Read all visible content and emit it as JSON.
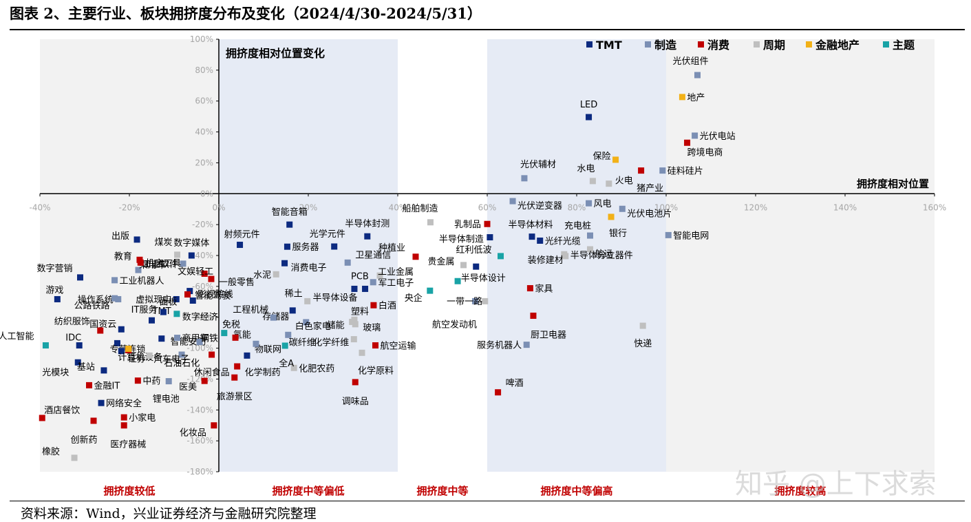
{
  "figure": {
    "title": "图表 2、主要行业、板块拥挤度分布及变化（2024/4/30-2024/5/31）",
    "source": "资料来源：Wind，兴业证券经济与金融研究院整理",
    "watermark": "知乎 @上下求索"
  },
  "chart_data": {
    "type": "scatter",
    "title": "拥挤度相对位置变化",
    "xlabel": "拥挤度相对位置",
    "ylabel": "拥挤度相对位置变化",
    "xlim": [
      -0.4,
      1.6
    ],
    "ylim": [
      -1.8,
      1.0
    ],
    "x_ticks": [
      "-40%",
      "-20%",
      "0%",
      "20%",
      "40%",
      "60%",
      "80%",
      "100%",
      "120%",
      "140%",
      "160%"
    ],
    "y_ticks": [
      "100%",
      "80%",
      "60%",
      "40%",
      "20%",
      "0%",
      "-20%",
      "-40%",
      "-60%",
      "-80%",
      "-100%",
      "-120%",
      "-140%",
      "-160%",
      "-180%"
    ],
    "legend_position": "top-right",
    "colors": {
      "TMT": "#0c2a80",
      "制造": "#7b8fb4",
      "消费": "#c00000",
      "周期": "#bfbfbf",
      "金融地产": "#f2b117",
      "主题": "#19a3a6"
    },
    "bands": [
      {
        "label": "拥挤度较低",
        "range": [
          -0.4,
          0.0
        ],
        "color": "#f2f2f2"
      },
      {
        "label": "拥挤度中等偏低",
        "range": [
          0.0,
          0.4
        ],
        "color": "#e6ebf5"
      },
      {
        "label": "拥挤度中等",
        "range": [
          0.4,
          0.6
        ],
        "color": "#ffffff"
      },
      {
        "label": "拥挤度中等偏高",
        "range": [
          0.6,
          1.0
        ],
        "color": "#e6ebf5"
      },
      {
        "label": "拥挤度较高",
        "range": [
          1.0,
          1.6
        ],
        "color": "#f2f2f2"
      }
    ],
    "series": [
      {
        "name": "TMT",
        "points": [
          {
            "label": "LED",
            "x": 0.827,
            "y": 0.496
          },
          {
            "label": "半导体材料",
            "x": 0.7,
            "y": -0.278
          },
          {
            "label": "光纤光缆",
            "x": 0.718,
            "y": -0.304
          },
          {
            "label": "半导体制造",
            "x": 0.606,
            "y": -0.282
          },
          {
            "label": "半导体设计",
            "x": 0.575,
            "y": -0.472
          },
          {
            "label": "半导体封测",
            "x": 0.332,
            "y": -0.276
          },
          {
            "label": "光学元件",
            "x": 0.258,
            "y": -0.342
          },
          {
            "label": "PCB",
            "x": 0.303,
            "y": -0.616
          },
          {
            "label": "半导体设备",
            "x": 0.327,
            "y": -0.616
          },
          {
            "label": "智能音箱",
            "x": 0.158,
            "y": -0.2
          },
          {
            "label": "射频元件",
            "x": 0.047,
            "y": -0.331
          },
          {
            "label": "服务器",
            "x": 0.153,
            "y": -0.343
          },
          {
            "label": "消费电子",
            "x": 0.147,
            "y": -0.45
          },
          {
            "label": "存储器",
            "x": 0.165,
            "y": -0.756
          },
          {
            "label": "物联网",
            "x": 0.063,
            "y": -1.048
          },
          {
            "label": "数字媒体",
            "x": -0.061,
            "y": -0.4
          },
          {
            "label": "影视院线",
            "x": -0.065,
            "y": -0.63
          },
          {
            "label": "智能驾驶",
            "x": -0.058,
            "y": -0.692
          },
          {
            "label": "虚拟现实",
            "x": -0.095,
            "y": -0.683
          },
          {
            "label": "TMT",
            "x": -0.15,
            "y": -0.82
          },
          {
            "label": "IT服务",
            "x": -0.124,
            "y": -0.766
          },
          {
            "label": "国资云",
            "x": -0.218,
            "y": -0.878
          },
          {
            "label": "智能安防",
            "x": -0.128,
            "y": -0.938
          },
          {
            "label": "游戏",
            "x": -0.361,
            "y": -0.683
          },
          {
            "label": "数字营销",
            "x": -0.31,
            "y": -0.542
          },
          {
            "label": "出版",
            "x": -0.183,
            "y": -0.297
          },
          {
            "label": "IDC",
            "x": -0.312,
            "y": -0.982
          },
          {
            "label": "专营连锁",
            "x": -0.227,
            "y": -0.968
          },
          {
            "label": "计算机设备",
            "x": -0.218,
            "y": -1.019
          },
          {
            "label": "光模块",
            "x": -0.315,
            "y": -1.092
          },
          {
            "label": "基站",
            "x": -0.257,
            "y": -1.144
          },
          {
            "label": "网络安全",
            "x": -0.263,
            "y": -1.355
          }
        ]
      },
      {
        "name": "制造",
        "points": [
          {
            "label": "光伏组件",
            "x": 1.07,
            "y": 0.768
          },
          {
            "label": "光伏电站",
            "x": 1.064,
            "y": 0.376
          },
          {
            "label": "硅料硅片",
            "x": 0.992,
            "y": 0.15
          },
          {
            "label": "光伏辅材",
            "x": 0.683,
            "y": 0.1
          },
          {
            "label": "光伏逆变器",
            "x": 0.657,
            "y": -0.048
          },
          {
            "label": "风电",
            "x": 0.827,
            "y": -0.062
          },
          {
            "label": "光伏电池片",
            "x": 0.902,
            "y": -0.098
          },
          {
            "label": "充电桩",
            "x": 0.83,
            "y": -0.271
          },
          {
            "label": "智能电网",
            "x": 1.005,
            "y": -0.268
          },
          {
            "label": "航空发动机",
            "x": 0.573,
            "y": -0.696
          },
          {
            "label": "服务机器人",
            "x": 0.688,
            "y": -0.978
          },
          {
            "label": "卫星通信",
            "x": 0.288,
            "y": -0.446
          },
          {
            "label": "军工电子",
            "x": 0.345,
            "y": -0.573
          },
          {
            "label": "工程机械",
            "x": 0.122,
            "y": -0.802
          },
          {
            "label": "白色家电",
            "x": 0.195,
            "y": -0.832
          },
          {
            "label": "氢能",
            "x": 0.083,
            "y": -0.972
          },
          {
            "label": "碳纤维",
            "x": 0.155,
            "y": -0.914
          },
          {
            "label": "工业机器人",
            "x": -0.233,
            "y": -0.56
          },
          {
            "label": "操作系统",
            "x": -0.225,
            "y": -0.683
          },
          {
            "label": "乘用车",
            "x": -0.18,
            "y": -0.494
          },
          {
            "label": "工业软件",
            "x": -0.08,
            "y": -0.453
          },
          {
            "label": "锂电池",
            "x": -0.112,
            "y": -1.214
          },
          {
            "label": "公路铁路",
            "x": -0.233,
            "y": -0.677
          },
          {
            "label": "商用车",
            "x": -0.093,
            "y": -0.933
          },
          {
            "label": "汽车电子",
            "x": -0.083,
            "y": -1.042
          },
          {
            "label": "钢铁",
            "x": -0.043,
            "y": -0.96
          }
        ]
      },
      {
        "name": "消费",
        "points": [
          {
            "label": "跨境电商",
            "x": 1.047,
            "y": 0.33
          },
          {
            "label": "猪产业",
            "x": 0.944,
            "y": 0.15
          },
          {
            "label": "乳制品",
            "x": 0.6,
            "y": -0.196
          },
          {
            "label": "种植业",
            "x": 0.44,
            "y": -0.408
          },
          {
            "label": "家具",
            "x": 0.696,
            "y": -0.612
          },
          {
            "label": "厨卫电器",
            "x": 0.703,
            "y": -0.79
          },
          {
            "label": "啤酒",
            "x": 0.624,
            "y": -1.286
          },
          {
            "label": "白酒",
            "x": 0.346,
            "y": -0.722
          },
          {
            "label": "航空运输",
            "x": 0.35,
            "y": -0.982
          },
          {
            "label": "调味品",
            "x": 0.305,
            "y": -1.22
          },
          {
            "label": "免税",
            "x": 0.037,
            "y": -0.932
          },
          {
            "label": "化学制药",
            "x": 0.041,
            "y": -1.118
          },
          {
            "label": "旅游景区",
            "x": 0.035,
            "y": -1.19
          },
          {
            "label": "教育",
            "x": -0.177,
            "y": -0.428
          },
          {
            "label": "机床工具",
            "x": -0.175,
            "y": -0.446
          },
          {
            "label": "文娱轻工",
            "x": -0.032,
            "y": -0.518
          },
          {
            "label": "一般零售",
            "x": -0.017,
            "y": -0.552
          },
          {
            "label": "面板",
            "x": -0.07,
            "y": -0.652
          },
          {
            "label": "纺织服饰",
            "x": -0.265,
            "y": -0.886
          },
          {
            "label": "证券",
            "x": -0.202,
            "y": -1.013
          },
          {
            "label": "中药",
            "x": -0.181,
            "y": -1.21
          },
          {
            "label": "休闲食品",
            "x": -0.016,
            "y": -1.042
          },
          {
            "label": "医美",
            "x": -0.032,
            "y": -1.212
          },
          {
            "label": "金融IT",
            "x": -0.29,
            "y": -1.24
          },
          {
            "label": "酒店餐饮",
            "x": -0.395,
            "y": -1.452
          },
          {
            "label": "小家电",
            "x": -0.212,
            "y": -1.448
          },
          {
            "label": "创新药",
            "x": -0.28,
            "y": -1.47
          },
          {
            "label": "医疗器械",
            "x": -0.212,
            "y": -1.5
          },
          {
            "label": "化妆品",
            "x": -0.011,
            "y": -1.5
          }
        ]
      },
      {
        "name": "周期",
        "points": [
          {
            "label": "水电",
            "x": 0.836,
            "y": 0.082
          },
          {
            "label": "火电",
            "x": 0.872,
            "y": 0.065
          },
          {
            "label": "航运",
            "x": 0.83,
            "y": -0.36
          },
          {
            "label": "装修建材",
            "x": 0.772,
            "y": -0.392
          },
          {
            "label": "半导体分立器件",
            "x": 0.775,
            "y": -0.404
          },
          {
            "label": "快递",
            "x": 0.948,
            "y": -0.855
          },
          {
            "label": "船舶制造",
            "x": 0.473,
            "y": -0.185
          },
          {
            "label": "贵金属",
            "x": 0.547,
            "y": -0.462
          },
          {
            "label": "一带一路",
            "x": 0.595,
            "y": -0.696
          },
          {
            "label": "工业金属",
            "x": 0.36,
            "y": -0.53
          },
          {
            "label": "水泥",
            "x": 0.128,
            "y": -0.522
          },
          {
            "label": "稀土",
            "x": 0.198,
            "y": -0.696
          },
          {
            "label": "储能",
            "x": 0.298,
            "y": -0.83
          },
          {
            "label": "塑料",
            "x": 0.303,
            "y": -0.816
          },
          {
            "label": "玻璃",
            "x": 0.305,
            "y": -0.845
          },
          {
            "label": "化学纤维",
            "x": 0.302,
            "y": -0.942
          },
          {
            "label": "化学原料",
            "x": 0.32,
            "y": -1.03
          },
          {
            "label": "化肥农药",
            "x": 0.168,
            "y": -1.128
          },
          {
            "label": "煤炭",
            "x": -0.093,
            "y": -0.395
          },
          {
            "label": "石油石化",
            "x": -0.155,
            "y": -1.048
          },
          {
            "label": "橡胶",
            "x": -0.323,
            "y": -1.71
          }
        ]
      },
      {
        "name": "金融地产",
        "points": [
          {
            "label": "地产",
            "x": 1.036,
            "y": 0.626
          },
          {
            "label": "保险",
            "x": 0.887,
            "y": 0.22
          },
          {
            "label": "银行",
            "x": 0.877,
            "y": -0.15
          },
          {
            "label": "证券",
            "x": -0.202,
            "y": -1.004
          }
        ]
      },
      {
        "name": "主题",
        "points": [
          {
            "label": "红利低波",
            "x": 0.63,
            "y": -0.404
          },
          {
            "label": "央企",
            "x": 0.472,
            "y": -0.628
          },
          {
            "label": "一带一路",
            "x": 0.534,
            "y": -0.566
          },
          {
            "label": "全A",
            "x": 0.148,
            "y": -0.984
          },
          {
            "label": "数字经济",
            "x": 0.012,
            "y": -0.902
          },
          {
            "label": "人工智能",
            "x": -0.387,
            "y": -0.982
          },
          {
            "label": "智能驾驶",
            "x": -0.094,
            "y": -0.778
          }
        ]
      }
    ]
  }
}
